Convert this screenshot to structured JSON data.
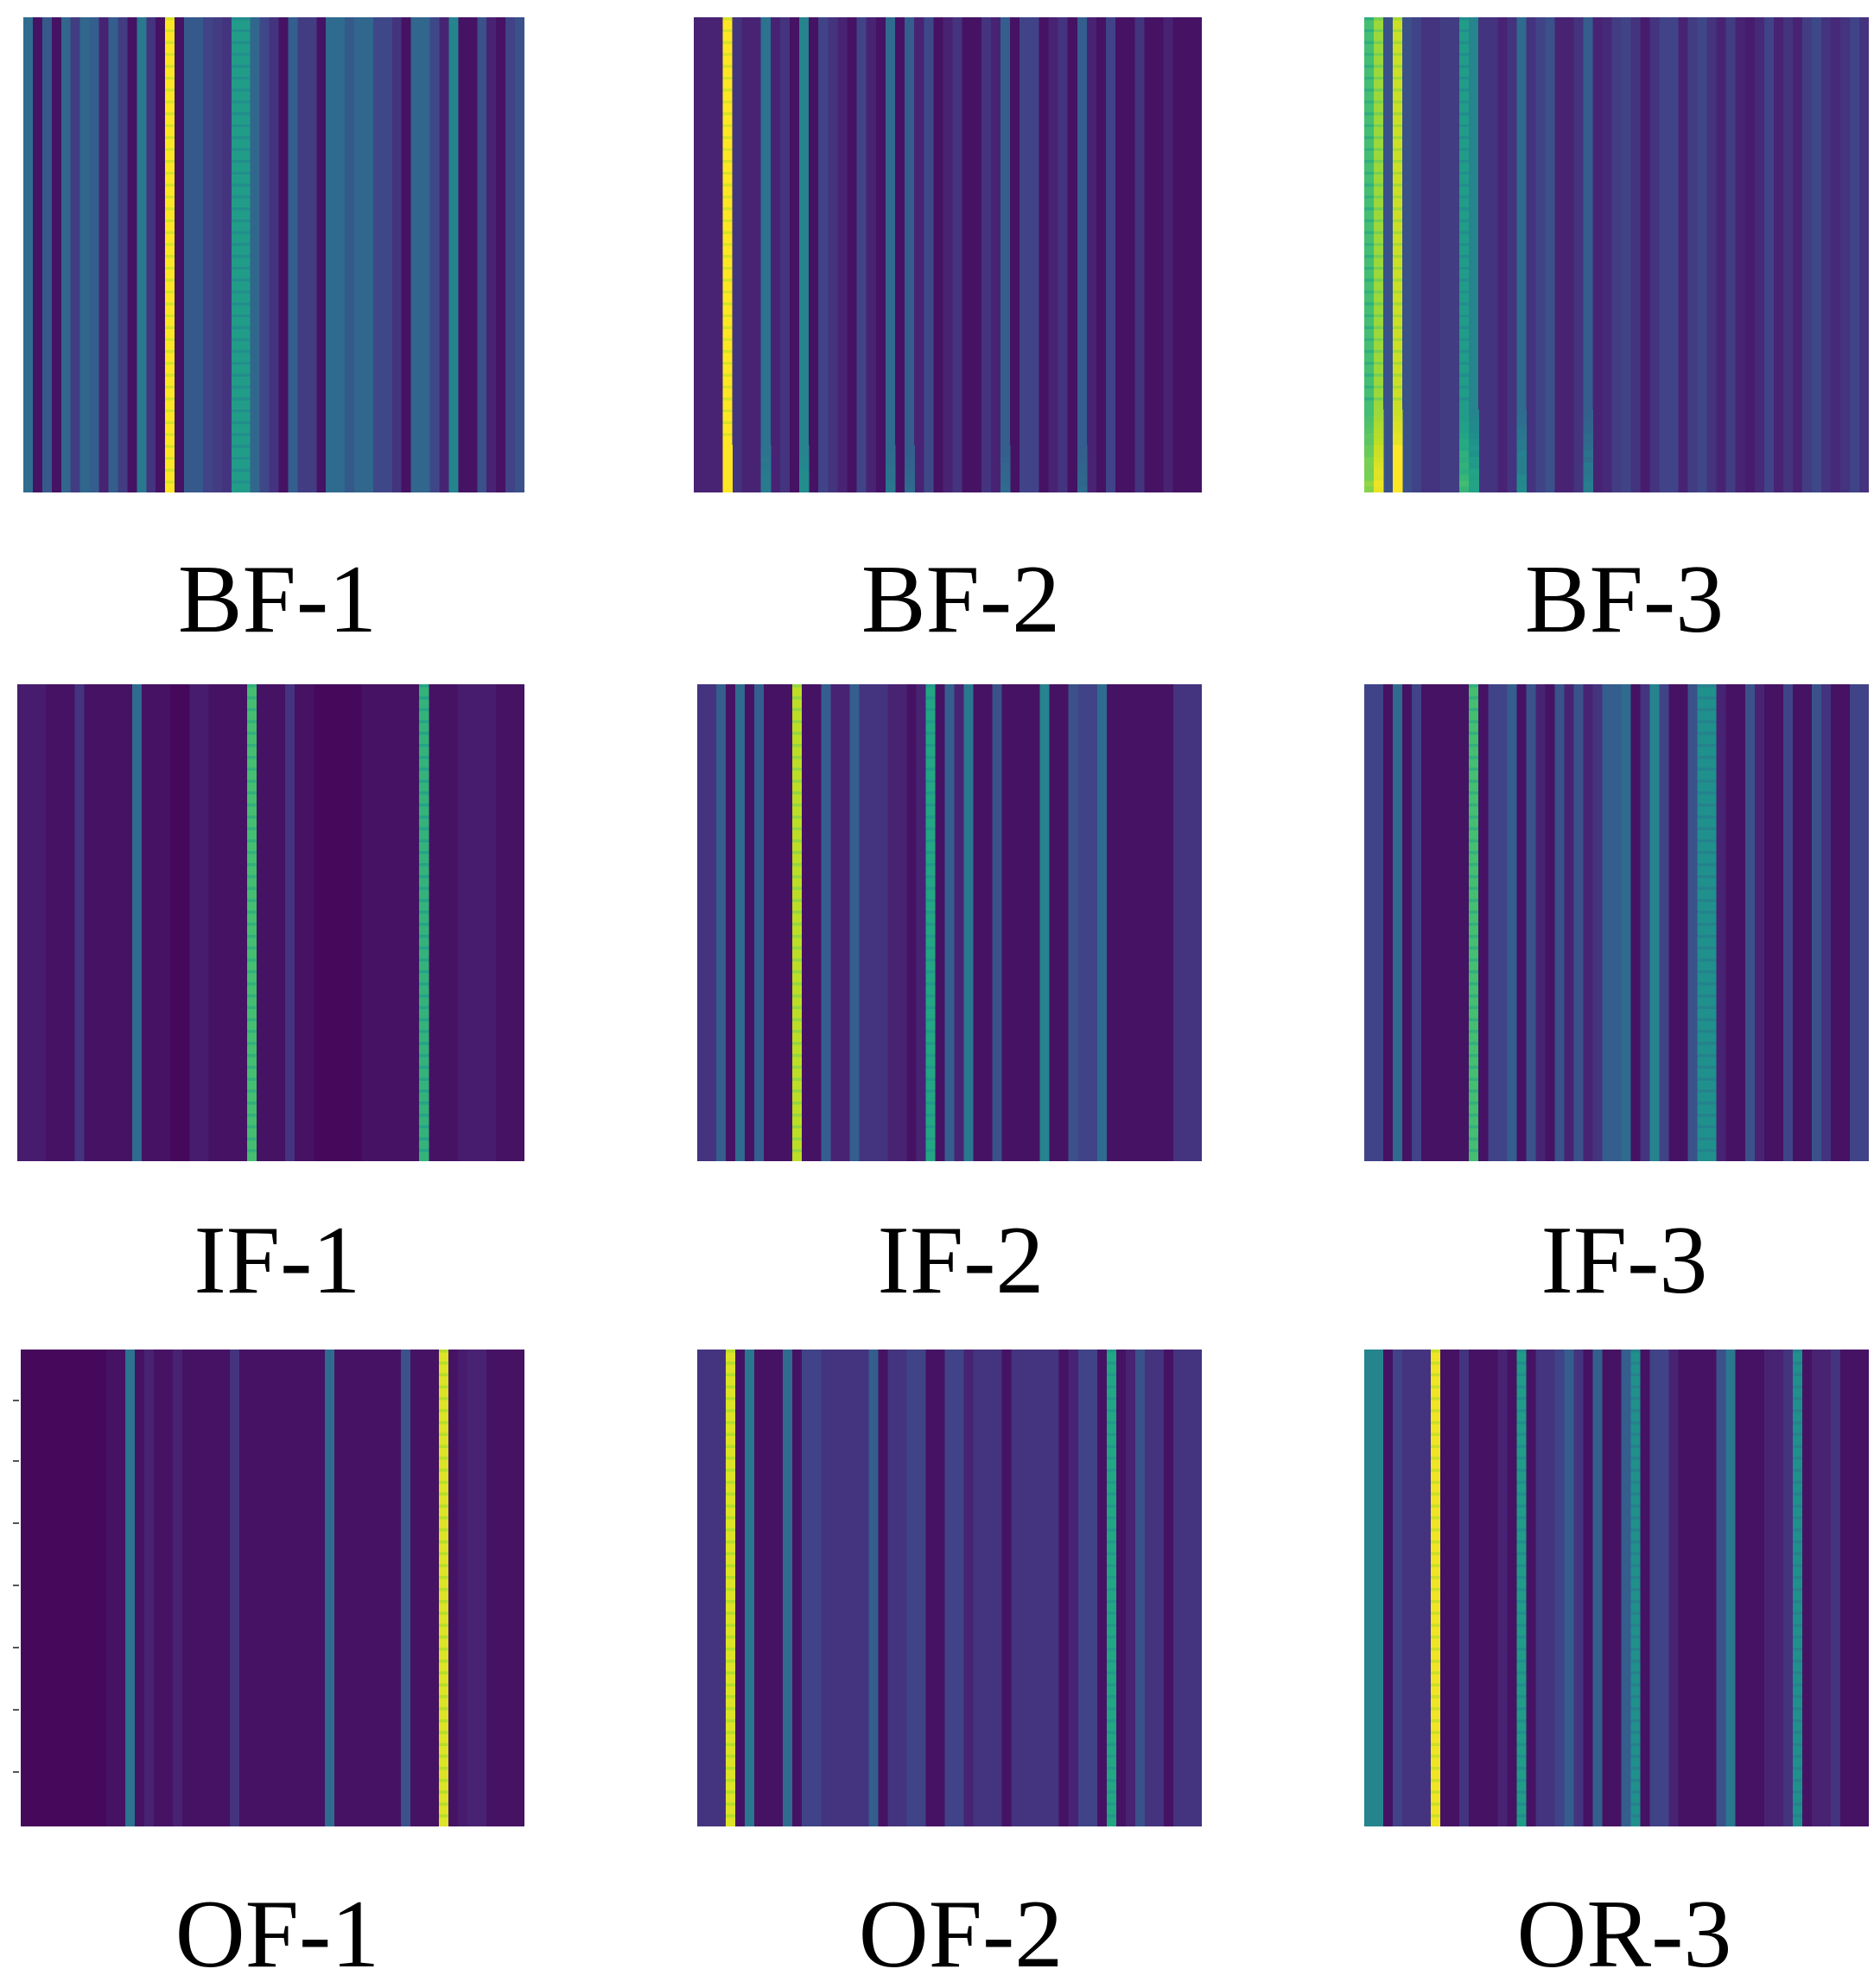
{
  "chart_data": {
    "type": "heatmap",
    "colormap": "viridis",
    "value_range": [
      0,
      1
    ],
    "panels": [
      {
        "label": "BF-1",
        "rows": 80,
        "columns": [
          0.36,
          0.05,
          0.28,
          0.05,
          0.33,
          0.18,
          0.33,
          0.3,
          0.1,
          0.3,
          0.18,
          0.05,
          0.4,
          0.15,
          0.05,
          1.0,
          0.05,
          0.28,
          0.28,
          0.2,
          0.18,
          0.15,
          0.55,
          0.55,
          0.33,
          0.22,
          0.15,
          0.05,
          0.3,
          0.18,
          0.18,
          0.05,
          0.35,
          0.35,
          0.28,
          0.33,
          0.33,
          0.22,
          0.22,
          0.15,
          0.05,
          0.33,
          0.33,
          0.22,
          0.1,
          0.45,
          0.05,
          0.05,
          0.25,
          0.1,
          0.05,
          0.2,
          0.25
        ],
        "edge_fade": "none"
      },
      {
        "label": "BF-2",
        "rows": 80,
        "columns": [
          0.1,
          0.1,
          0.1,
          1.0,
          0.15,
          0.1,
          0.1,
          0.38,
          0.1,
          0.15,
          0.05,
          0.45,
          0.05,
          0.2,
          0.15,
          0.1,
          0.05,
          0.2,
          0.1,
          0.05,
          0.35,
          0.05,
          0.3,
          0.1,
          0.22,
          0.05,
          0.1,
          0.15,
          0.05,
          0.05,
          0.15,
          0.1,
          0.3,
          0.05,
          0.2,
          0.2,
          0.05,
          0.1,
          0.15,
          0.05,
          0.3,
          0.1,
          0.05,
          0.2,
          0.05,
          0.05,
          0.15,
          0.05,
          0.05,
          0.1,
          0.05,
          0.05,
          0.05
        ],
        "edge_fade": "bright-bottom"
      },
      {
        "label": "BF-3",
        "rows": 80,
        "columns": [
          0.7,
          0.85,
          0.25,
          0.92,
          0.25,
          0.2,
          0.15,
          0.15,
          0.18,
          0.18,
          0.55,
          0.45,
          0.15,
          0.15,
          0.1,
          0.15,
          0.35,
          0.15,
          0.2,
          0.25,
          0.1,
          0.1,
          0.15,
          0.3,
          0.1,
          0.12,
          0.18,
          0.2,
          0.15,
          0.08,
          0.15,
          0.2,
          0.2,
          0.1,
          0.18,
          0.22,
          0.15,
          0.1,
          0.18,
          0.1,
          0.08,
          0.12,
          0.2,
          0.1,
          0.15,
          0.1,
          0.18,
          0.22,
          0.15,
          0.12,
          0.15,
          0.2,
          0.15
        ],
        "edge_fade": "bright-bottom-strong"
      },
      {
        "label": "IF-1",
        "rows": 80,
        "columns": [
          0.08,
          0.08,
          0.08,
          0.05,
          0.05,
          0.05,
          0.15,
          0.05,
          0.05,
          0.05,
          0.05,
          0.05,
          0.35,
          0.05,
          0.05,
          0.05,
          0.02,
          0.02,
          0.08,
          0.08,
          0.05,
          0.05,
          0.05,
          0.05,
          0.7,
          0.05,
          0.05,
          0.05,
          0.15,
          0.05,
          0.05,
          0.02,
          0.02,
          0.02,
          0.02,
          0.02,
          0.05,
          0.05,
          0.05,
          0.05,
          0.05,
          0.05,
          0.65,
          0.05,
          0.05,
          0.05,
          0.08,
          0.08,
          0.08,
          0.08,
          0.05,
          0.05,
          0.05
        ],
        "edge_fade": "none"
      },
      {
        "label": "IF-2",
        "rows": 80,
        "columns": [
          0.15,
          0.15,
          0.3,
          0.05,
          0.35,
          0.05,
          0.3,
          0.05,
          0.05,
          0.05,
          0.9,
          0.05,
          0.05,
          0.3,
          0.1,
          0.1,
          0.3,
          0.15,
          0.15,
          0.15,
          0.1,
          0.1,
          0.05,
          0.1,
          0.6,
          0.05,
          0.3,
          0.1,
          0.4,
          0.05,
          0.05,
          0.25,
          0.05,
          0.05,
          0.05,
          0.05,
          0.45,
          0.05,
          0.05,
          0.25,
          0.2,
          0.2,
          0.35,
          0.05,
          0.05,
          0.05,
          0.05,
          0.05,
          0.05,
          0.05,
          0.15,
          0.15,
          0.15
        ],
        "edge_fade": "none"
      },
      {
        "label": "IF-3",
        "rows": 80,
        "columns": [
          0.2,
          0.2,
          0.05,
          0.35,
          0.05,
          0.2,
          0.05,
          0.05,
          0.05,
          0.05,
          0.05,
          0.7,
          0.05,
          0.2,
          0.2,
          0.3,
          0.05,
          0.25,
          0.1,
          0.05,
          0.25,
          0.1,
          0.25,
          0.1,
          0.15,
          0.3,
          0.3,
          0.35,
          0.05,
          0.15,
          0.45,
          0.2,
          0.05,
          0.05,
          0.25,
          0.5,
          0.5,
          0.1,
          0.05,
          0.05,
          0.25,
          0.1,
          0.05,
          0.05,
          0.2,
          0.05,
          0.05,
          0.25,
          0.15,
          0.05,
          0.05,
          0.2,
          0.2
        ],
        "edge_fade": "none"
      },
      {
        "label": "OF-1",
        "rows": 80,
        "columns": [
          0.02,
          0.02,
          0.02,
          0.02,
          0.02,
          0.02,
          0.02,
          0.02,
          0.02,
          0.05,
          0.05,
          0.38,
          0.05,
          0.1,
          0.05,
          0.05,
          0.1,
          0.05,
          0.05,
          0.05,
          0.05,
          0.05,
          0.15,
          0.05,
          0.05,
          0.05,
          0.05,
          0.05,
          0.05,
          0.05,
          0.05,
          0.05,
          0.35,
          0.05,
          0.05,
          0.05,
          0.05,
          0.05,
          0.05,
          0.05,
          0.25,
          0.05,
          0.05,
          0.05,
          0.95,
          0.05,
          0.08,
          0.1,
          0.1,
          0.05,
          0.05,
          0.05,
          0.05
        ],
        "edge_fade": "none"
      },
      {
        "label": "OF-2",
        "rows": 80,
        "columns": [
          0.15,
          0.15,
          0.15,
          0.95,
          0.05,
          0.4,
          0.05,
          0.05,
          0.05,
          0.35,
          0.05,
          0.2,
          0.2,
          0.15,
          0.15,
          0.15,
          0.15,
          0.15,
          0.3,
          0.05,
          0.15,
          0.15,
          0.2,
          0.2,
          0.05,
          0.05,
          0.2,
          0.2,
          0.1,
          0.15,
          0.15,
          0.15,
          0.05,
          0.15,
          0.15,
          0.15,
          0.15,
          0.15,
          0.05,
          0.1,
          0.2,
          0.2,
          0.05,
          0.6,
          0.05,
          0.1,
          0.25,
          0.15,
          0.15,
          0.05,
          0.15,
          0.15,
          0.15
        ],
        "edge_fade": "none"
      },
      {
        "label": "OR-3",
        "rows": 80,
        "columns": [
          0.45,
          0.45,
          0.05,
          0.2,
          0.15,
          0.15,
          0.15,
          0.98,
          0.05,
          0.05,
          0.15,
          0.05,
          0.05,
          0.05,
          0.1,
          0.05,
          0.55,
          0.05,
          0.15,
          0.15,
          0.2,
          0.3,
          0.15,
          0.05,
          0.3,
          0.05,
          0.05,
          0.3,
          0.5,
          0.05,
          0.2,
          0.2,
          0.1,
          0.05,
          0.05,
          0.05,
          0.05,
          0.25,
          0.4,
          0.05,
          0.05,
          0.05,
          0.1,
          0.1,
          0.15,
          0.5,
          0.05,
          0.1,
          0.1,
          0.15,
          0.05,
          0.05,
          0.05
        ],
        "edge_fade": "none"
      }
    ]
  }
}
